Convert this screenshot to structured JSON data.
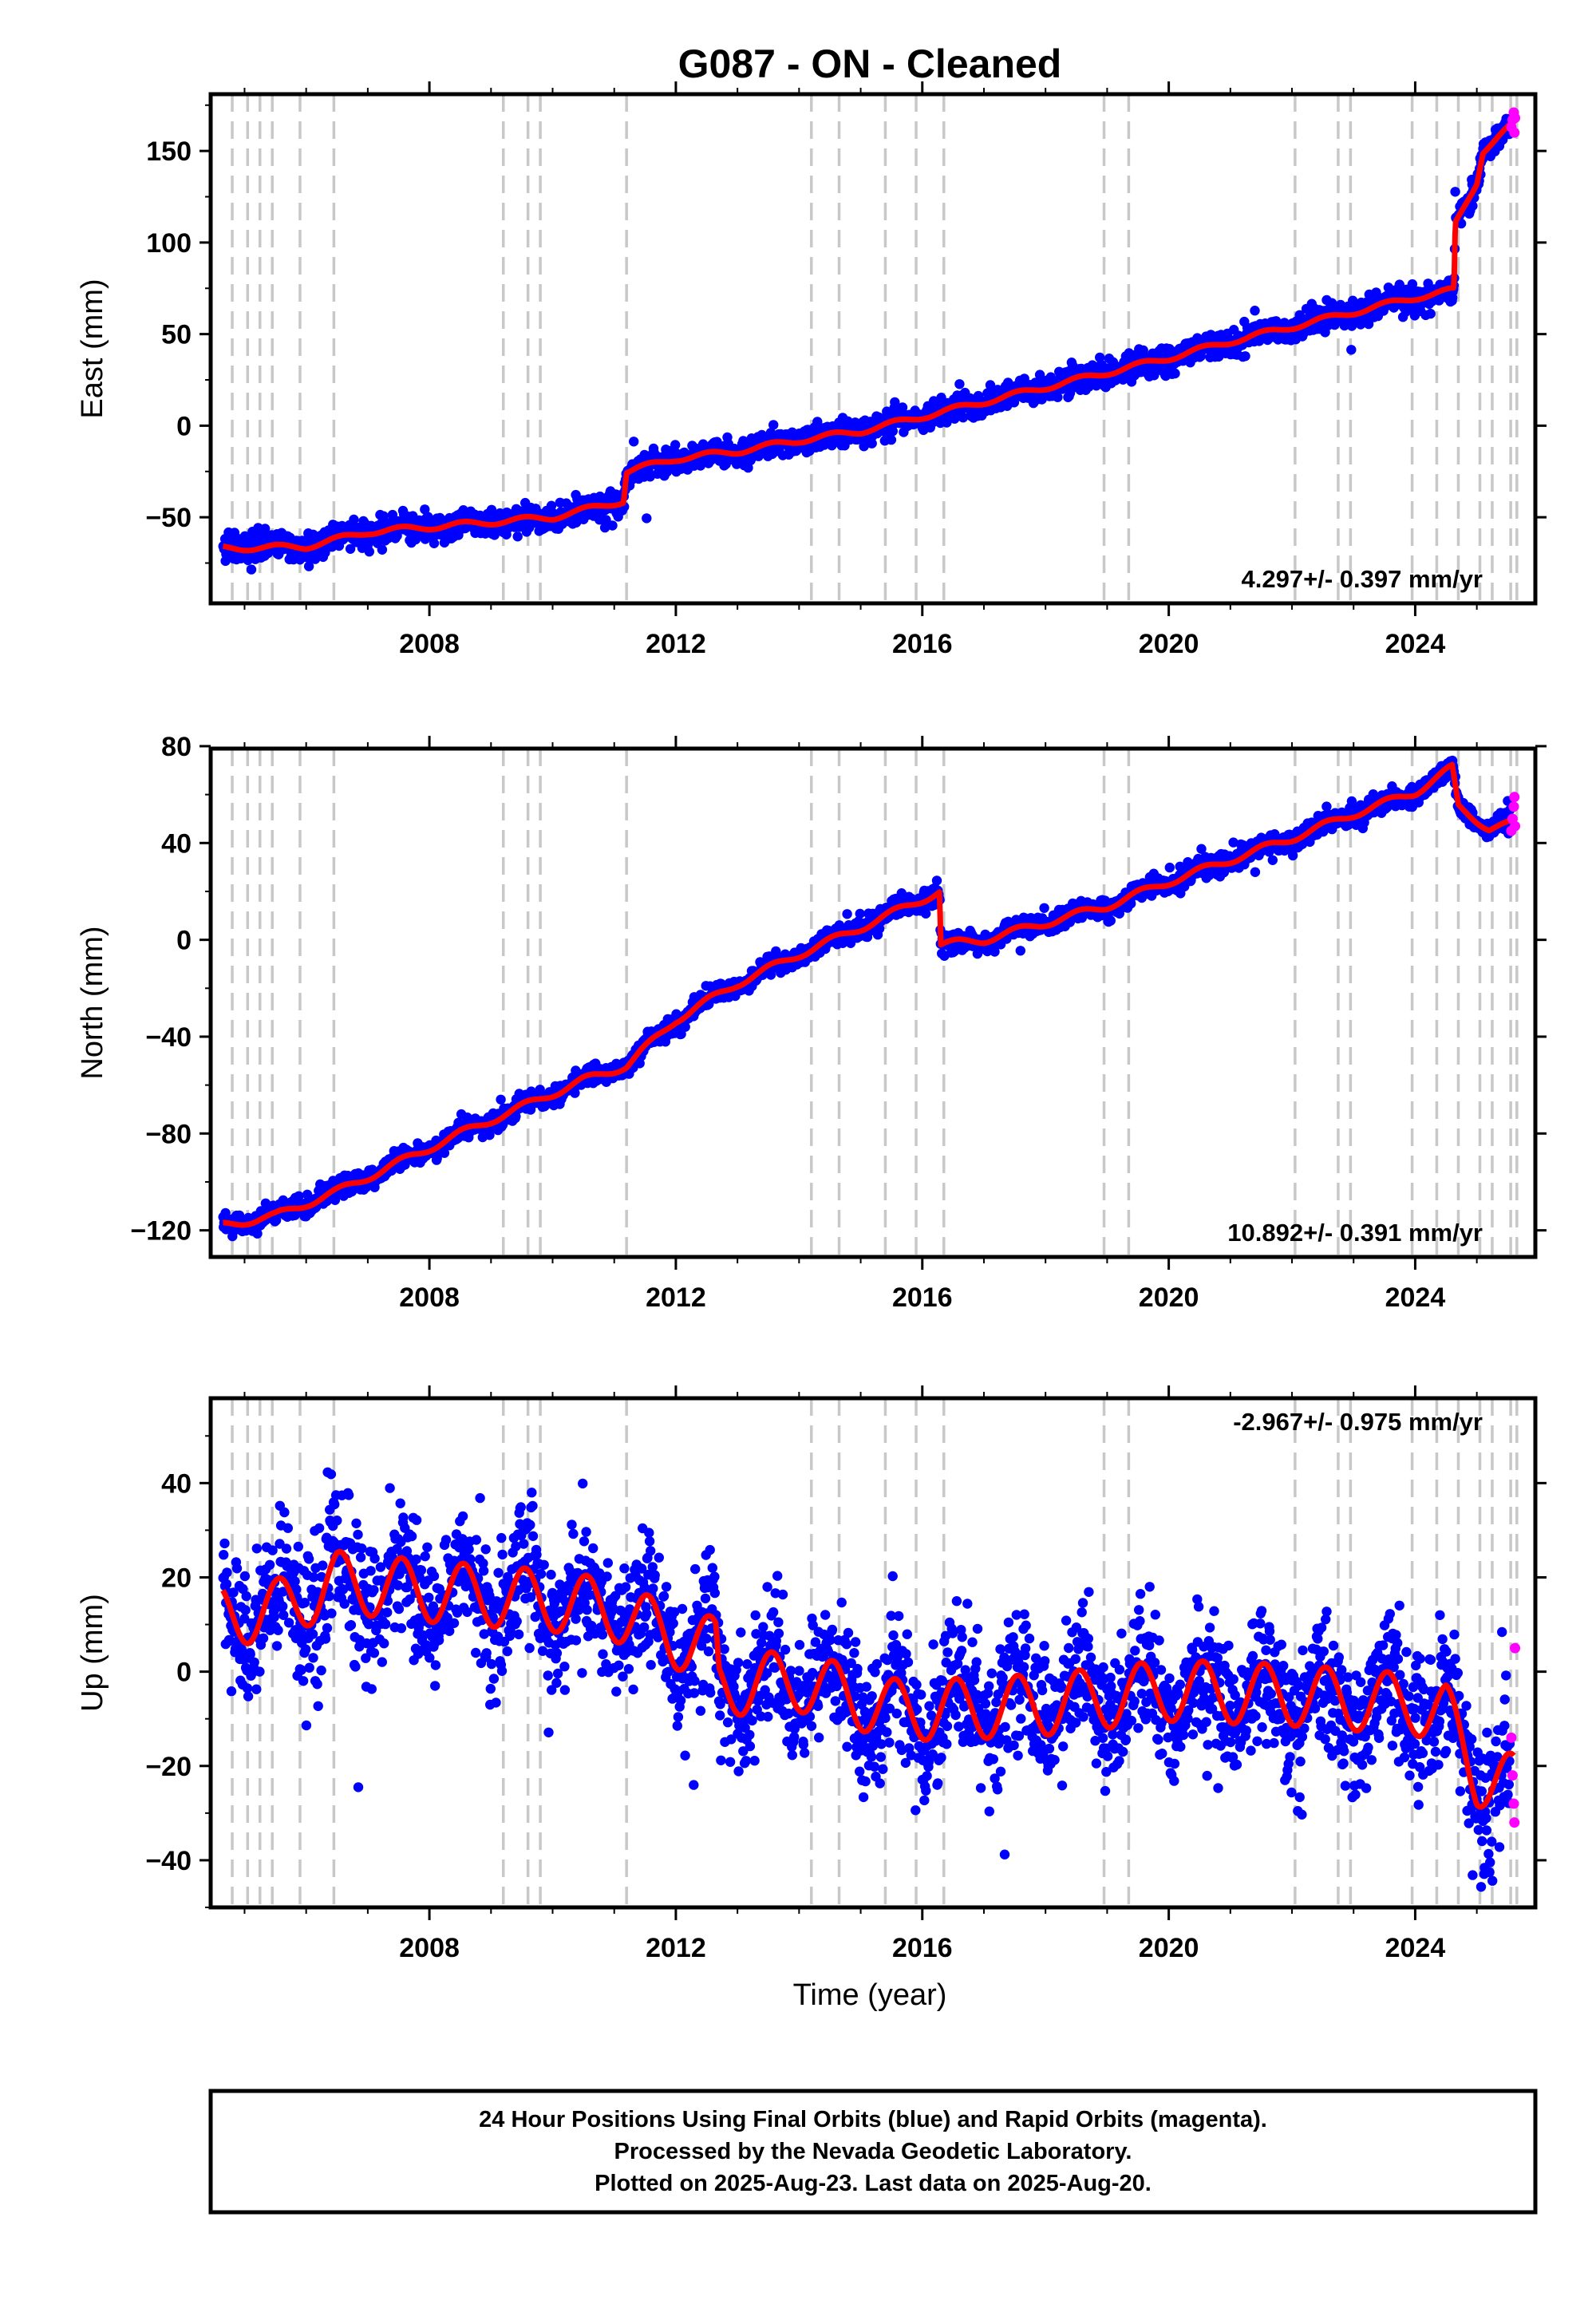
{
  "title": "G087  - ON - Cleaned",
  "xlabel": "Time (year)",
  "footer": {
    "line1": "24 Hour Positions Using Final Orbits (blue) and Rapid Orbits (magenta).",
    "line2": "Processed by the Nevada Geodetic Laboratory.",
    "line3": "Plotted on 2025-Aug-23. Last data on 2025-Aug-20."
  },
  "colors": {
    "final": "#0000ff",
    "rapid": "#ff00ff",
    "model": "#ff0000",
    "event_line": "#c8c8c8"
  },
  "chart_data": [
    {
      "type": "scatter",
      "component": "East",
      "ylabel": "East (mm)",
      "rate_text": "4.297+/- 0.397 mm/yr",
      "xlim": [
        2004.45,
        2025.95
      ],
      "ylim": [
        -97,
        181
      ],
      "xticks": [
        "2008",
        "2012",
        "2016",
        "2020",
        "2024"
      ],
      "yticks": [
        "−50",
        "0",
        "50",
        "100",
        "150"
      ],
      "model_breakpoints": [
        [
          2004.65,
          -67
        ],
        [
          2006.0,
          -66
        ],
        [
          2007.0,
          -58
        ],
        [
          2008.5,
          -54
        ],
        [
          2010.0,
          -50
        ],
        [
          2011.15,
          -41
        ],
        [
          2011.2,
          -25
        ],
        [
          2012.0,
          -18
        ],
        [
          2013.0,
          -14
        ],
        [
          2014.0,
          -8
        ],
        [
          2015.0,
          -3
        ],
        [
          2016.0,
          5
        ],
        [
          2017.0,
          13
        ],
        [
          2018.0,
          21
        ],
        [
          2019.0,
          29
        ],
        [
          2020.0,
          37
        ],
        [
          2021.0,
          46
        ],
        [
          2022.0,
          54
        ],
        [
          2023.0,
          62
        ],
        [
          2024.0,
          70
        ],
        [
          2024.63,
          74
        ],
        [
          2024.65,
          110
        ],
        [
          2025.0,
          133
        ],
        [
          2025.1,
          150
        ],
        [
          2025.6,
          165
        ]
      ],
      "seasonal_amp": 1.5,
      "scatter_sd": 3.5,
      "rapid_points": [
        [
          2025.56,
          163
        ],
        [
          2025.58,
          167
        ],
        [
          2025.6,
          171
        ],
        [
          2025.61,
          160
        ],
        [
          2025.62,
          168
        ]
      ]
    },
    {
      "type": "scatter",
      "component": "North",
      "ylabel": "North (mm)",
      "rate_text": "10.892+/- 0.391 mm/yr",
      "xlim": [
        2004.45,
        2025.95
      ],
      "ylim": [
        -131,
        79
      ],
      "xticks": [
        "2008",
        "2012",
        "2016",
        "2020",
        "2024"
      ],
      "yticks": [
        "−120",
        "−80",
        "−40",
        "0",
        "40",
        "80"
      ],
      "model_breakpoints": [
        [
          2004.65,
          -118
        ],
        [
          2005.5,
          -114
        ],
        [
          2006.5,
          -104
        ],
        [
          2007.5,
          -92
        ],
        [
          2008.5,
          -80
        ],
        [
          2009.5,
          -69
        ],
        [
          2010.5,
          -58
        ],
        [
          2011.2,
          -52
        ],
        [
          2012.0,
          -33
        ],
        [
          2013.0,
          -18
        ],
        [
          2014.0,
          -6
        ],
        [
          2015.0,
          5
        ],
        [
          2016.28,
          20
        ],
        [
          2016.3,
          -2
        ],
        [
          2017.0,
          0
        ],
        [
          2018.0,
          7
        ],
        [
          2019.0,
          14
        ],
        [
          2020.0,
          24
        ],
        [
          2021.0,
          33
        ],
        [
          2022.0,
          42
        ],
        [
          2023.0,
          52
        ],
        [
          2024.0,
          61
        ],
        [
          2024.6,
          71
        ],
        [
          2024.7,
          55
        ],
        [
          2025.2,
          46
        ],
        [
          2025.6,
          48
        ]
      ],
      "seasonal_amp": 1.5,
      "scatter_sd": 2.0,
      "rapid_points": [
        [
          2025.56,
          45
        ],
        [
          2025.58,
          50
        ],
        [
          2025.6,
          55
        ],
        [
          2025.61,
          59
        ],
        [
          2025.62,
          47
        ]
      ]
    },
    {
      "type": "scatter",
      "component": "Up",
      "ylabel": "Up (mm)",
      "rate_text": "-2.967+/- 0.975 mm/yr",
      "xlim": [
        2004.45,
        2025.95
      ],
      "ylim": [
        -50,
        58
      ],
      "xticks": [
        "2008",
        "2012",
        "2016",
        "2020",
        "2024"
      ],
      "yticks": [
        "−40",
        "−20",
        "0",
        "20",
        "40"
      ],
      "model_breakpoints": [
        [
          2004.65,
          12
        ],
        [
          2005.5,
          13
        ],
        [
          2006.5,
          19
        ],
        [
          2008.0,
          17
        ],
        [
          2010.0,
          15
        ],
        [
          2011.0,
          13
        ],
        [
          2012.0,
          7
        ],
        [
          2012.65,
          5
        ],
        [
          2012.7,
          -3
        ],
        [
          2014.0,
          -2
        ],
        [
          2015.5,
          -8
        ],
        [
          2016.5,
          -8
        ],
        [
          2018.0,
          -7
        ],
        [
          2020.0,
          -4
        ],
        [
          2022.0,
          -5
        ],
        [
          2023.0,
          -6
        ],
        [
          2024.0,
          -7
        ],
        [
          2024.5,
          -9
        ],
        [
          2025.0,
          -22
        ],
        [
          2025.6,
          -24
        ]
      ],
      "seasonal_amp": 6.5,
      "scatter_sd": 7.0,
      "rapid_points": [
        [
          2025.56,
          -14
        ],
        [
          2025.58,
          -22
        ],
        [
          2025.6,
          -28
        ],
        [
          2025.61,
          -32
        ],
        [
          2025.62,
          5
        ]
      ]
    }
  ],
  "event_lines": [
    2004.8,
    2005.05,
    2005.25,
    2005.45,
    2005.9,
    2006.45,
    2009.2,
    2009.6,
    2009.8,
    2011.2,
    2014.2,
    2014.65,
    2015.4,
    2015.9,
    2016.35,
    2018.95,
    2019.35,
    2022.05,
    2022.75,
    2022.95,
    2023.95,
    2024.35,
    2024.7,
    2025.05,
    2025.25,
    2025.55,
    2025.65
  ]
}
